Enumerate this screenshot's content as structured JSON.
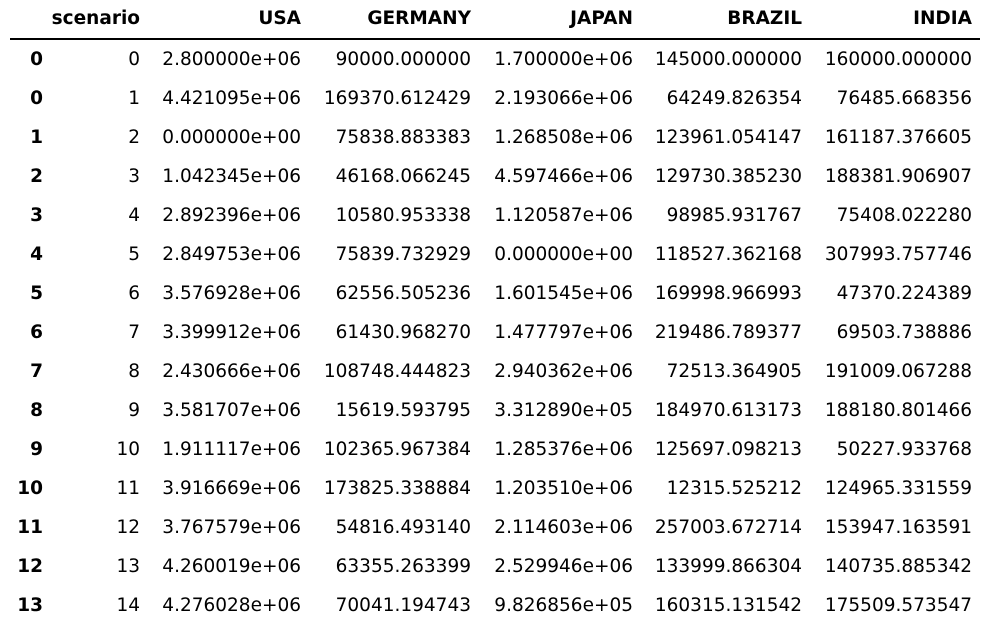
{
  "table": {
    "columns": [
      "",
      "scenario",
      "USA",
      "GERMANY",
      "JAPAN",
      "BRAZIL",
      "INDIA"
    ],
    "rows": [
      {
        "index": "0",
        "scenario": "0",
        "USA": "2.800000e+06",
        "GERMANY": "90000.000000",
        "JAPAN": "1.700000e+06",
        "BRAZIL": "145000.000000",
        "INDIA": "160000.000000"
      },
      {
        "index": "0",
        "scenario": "1",
        "USA": "4.421095e+06",
        "GERMANY": "169370.612429",
        "JAPAN": "2.193066e+06",
        "BRAZIL": "64249.826354",
        "INDIA": "76485.668356"
      },
      {
        "index": "1",
        "scenario": "2",
        "USA": "0.000000e+00",
        "GERMANY": "75838.883383",
        "JAPAN": "1.268508e+06",
        "BRAZIL": "123961.054147",
        "INDIA": "161187.376605"
      },
      {
        "index": "2",
        "scenario": "3",
        "USA": "1.042345e+06",
        "GERMANY": "46168.066245",
        "JAPAN": "4.597466e+06",
        "BRAZIL": "129730.385230",
        "INDIA": "188381.906907"
      },
      {
        "index": "3",
        "scenario": "4",
        "USA": "2.892396e+06",
        "GERMANY": "10580.953338",
        "JAPAN": "1.120587e+06",
        "BRAZIL": "98985.931767",
        "INDIA": "75408.022280"
      },
      {
        "index": "4",
        "scenario": "5",
        "USA": "2.849753e+06",
        "GERMANY": "75839.732929",
        "JAPAN": "0.000000e+00",
        "BRAZIL": "118527.362168",
        "INDIA": "307993.757746"
      },
      {
        "index": "5",
        "scenario": "6",
        "USA": "3.576928e+06",
        "GERMANY": "62556.505236",
        "JAPAN": "1.601545e+06",
        "BRAZIL": "169998.966993",
        "INDIA": "47370.224389"
      },
      {
        "index": "6",
        "scenario": "7",
        "USA": "3.399912e+06",
        "GERMANY": "61430.968270",
        "JAPAN": "1.477797e+06",
        "BRAZIL": "219486.789377",
        "INDIA": "69503.738886"
      },
      {
        "index": "7",
        "scenario": "8",
        "USA": "2.430666e+06",
        "GERMANY": "108748.444823",
        "JAPAN": "2.940362e+06",
        "BRAZIL": "72513.364905",
        "INDIA": "191009.067288"
      },
      {
        "index": "8",
        "scenario": "9",
        "USA": "3.581707e+06",
        "GERMANY": "15619.593795",
        "JAPAN": "3.312890e+05",
        "BRAZIL": "184970.613173",
        "INDIA": "188180.801466"
      },
      {
        "index": "9",
        "scenario": "10",
        "USA": "1.911117e+06",
        "GERMANY": "102365.967384",
        "JAPAN": "1.285376e+06",
        "BRAZIL": "125697.098213",
        "INDIA": "50227.933768"
      },
      {
        "index": "10",
        "scenario": "11",
        "USA": "3.916669e+06",
        "GERMANY": "173825.338884",
        "JAPAN": "1.203510e+06",
        "BRAZIL": "12315.525212",
        "INDIA": "124965.331559"
      },
      {
        "index": "11",
        "scenario": "12",
        "USA": "3.767579e+06",
        "GERMANY": "54816.493140",
        "JAPAN": "2.114603e+06",
        "BRAZIL": "257003.672714",
        "INDIA": "153947.163591"
      },
      {
        "index": "12",
        "scenario": "13",
        "USA": "4.260019e+06",
        "GERMANY": "63355.263399",
        "JAPAN": "2.529946e+06",
        "BRAZIL": "133999.866304",
        "INDIA": "140735.885342"
      },
      {
        "index": "13",
        "scenario": "14",
        "USA": "4.276028e+06",
        "GERMANY": "70041.194743",
        "JAPAN": "9.826856e+05",
        "BRAZIL": "160315.131542",
        "INDIA": "175509.573547"
      }
    ]
  }
}
